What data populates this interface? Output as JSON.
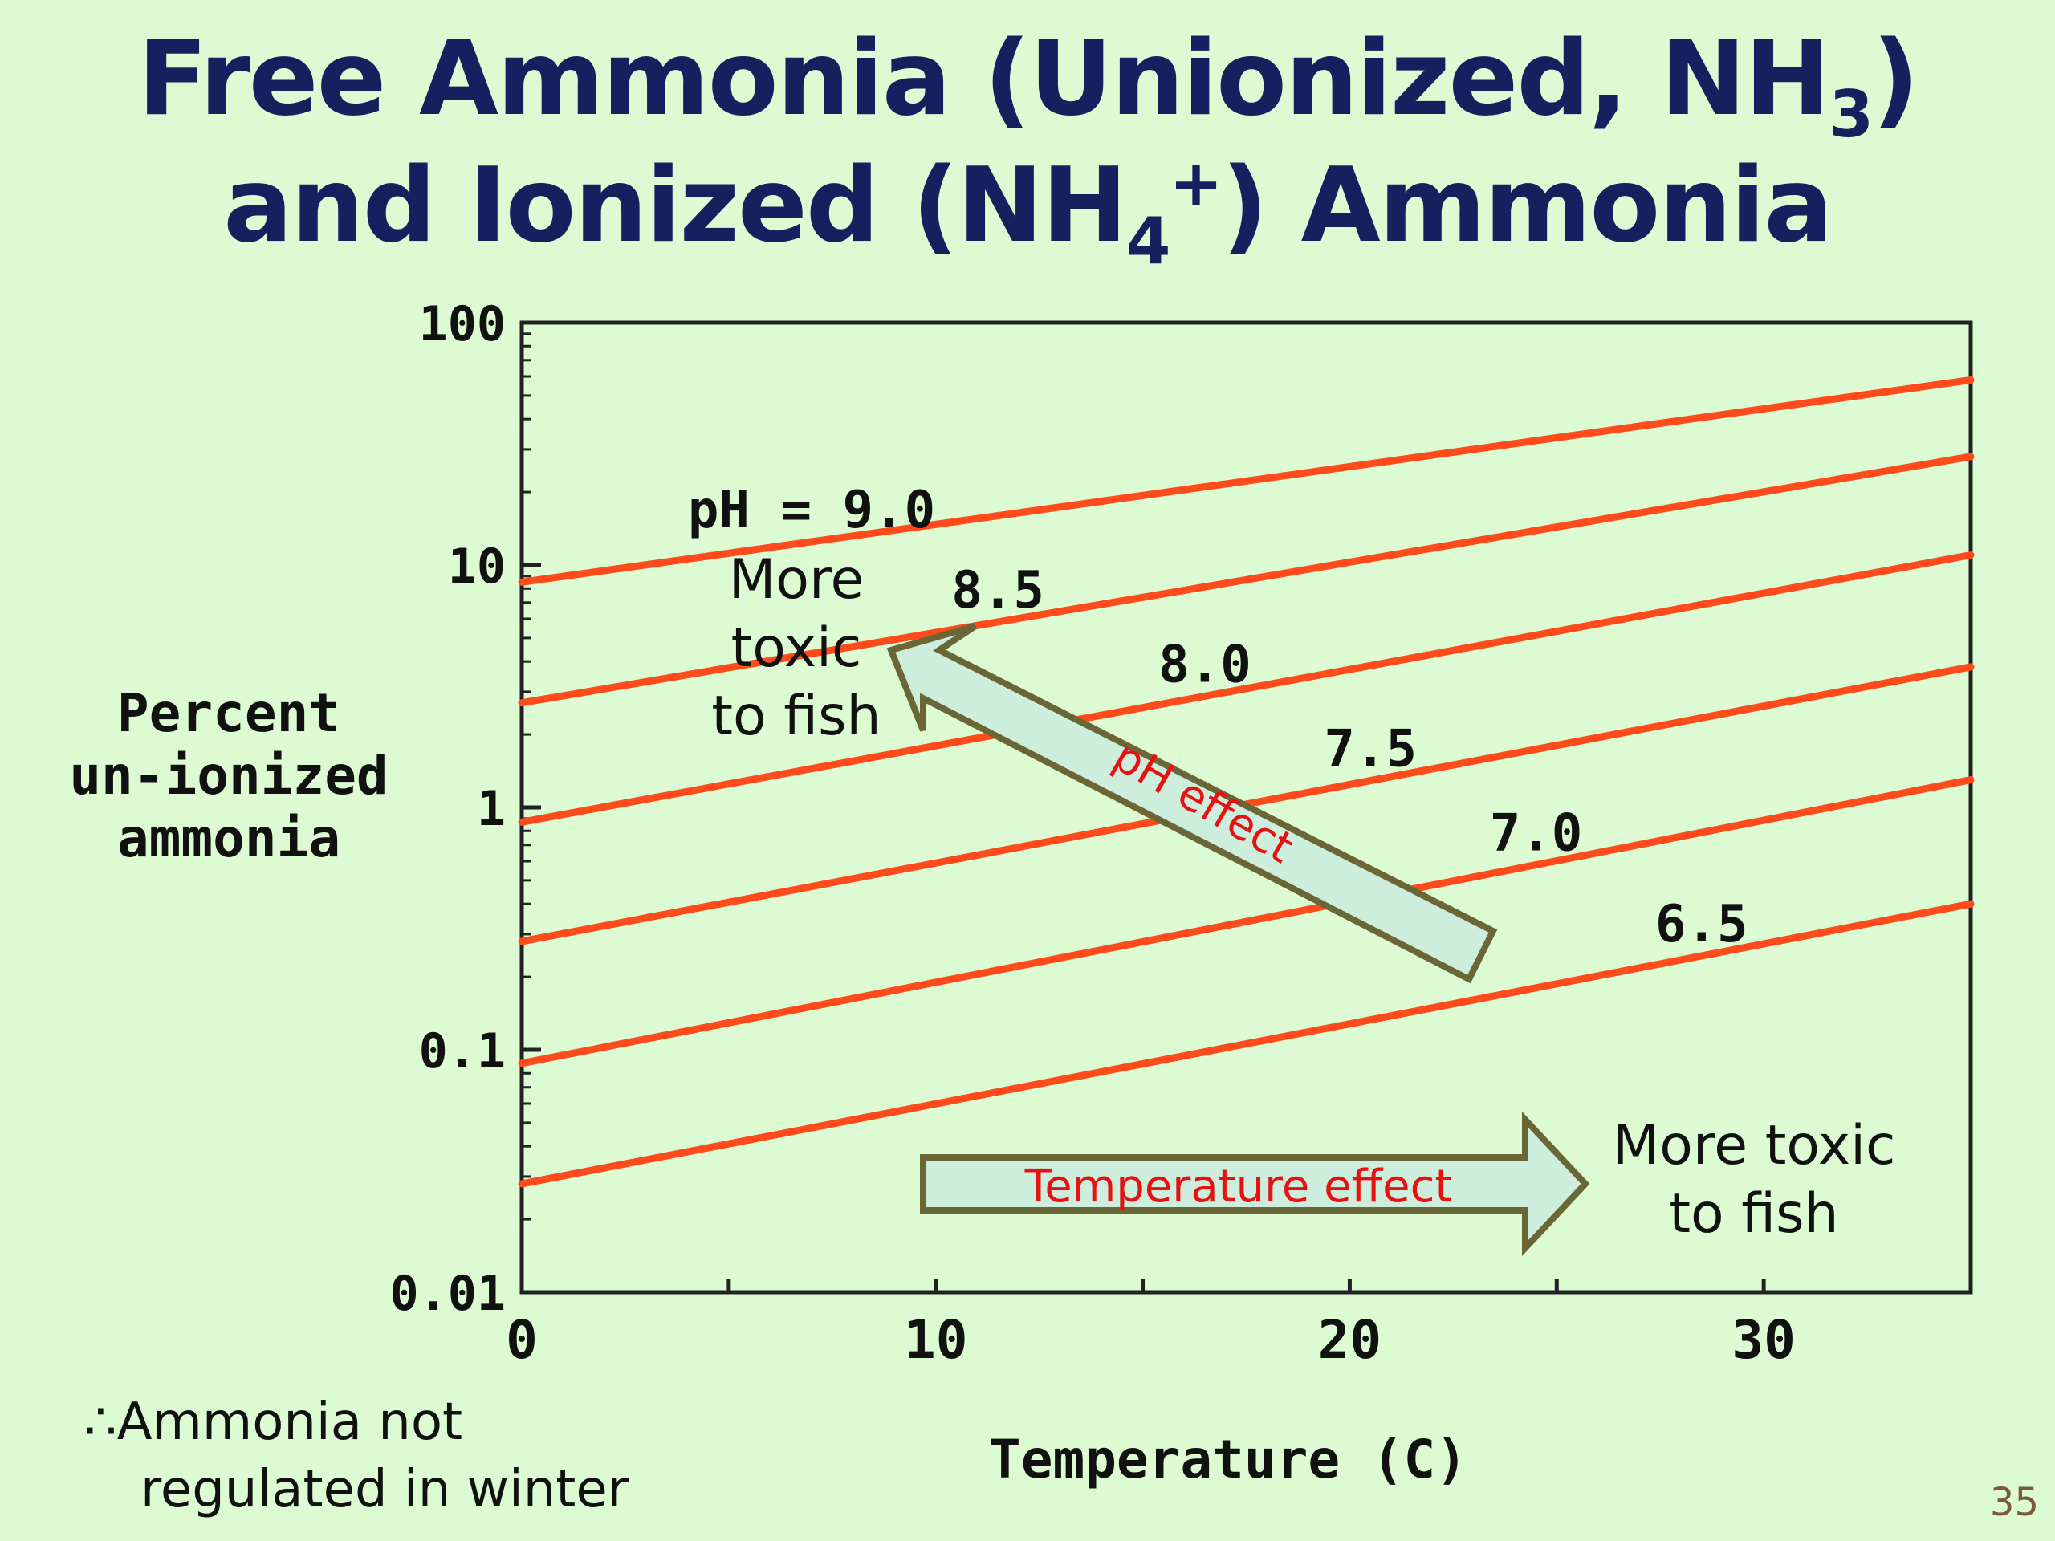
{
  "title": {
    "line1_pre": "Free Ammonia (Unionized, NH",
    "line1_sub": "3",
    "line1_post": ")",
    "line2_pre": "and Ionized (NH",
    "line2_sub": "4",
    "line2_sup": "+",
    "line2_post": ") Ammonia"
  },
  "chart_data": {
    "type": "line",
    "xlabel": "Temperature (C)",
    "ylabel_lines": [
      "Percent",
      "un-ionized",
      "ammonia"
    ],
    "xlim": [
      0,
      35
    ],
    "ylim": [
      0.01,
      100
    ],
    "yscale": "log",
    "xticks": [
      0,
      10,
      20,
      30
    ],
    "yticks": [
      100,
      10,
      1,
      0.1,
      0.01
    ],
    "ytick_labels": [
      "100",
      "10",
      "1",
      "0.1",
      "0.01"
    ],
    "grid": false,
    "x": [
      0,
      35
    ],
    "series": [
      {
        "name": "pH = 9.0",
        "values": [
          8.5,
          58
        ]
      },
      {
        "name": "8.5",
        "values": [
          2.7,
          28
        ]
      },
      {
        "name": "8.0",
        "values": [
          0.87,
          11
        ]
      },
      {
        "name": "7.5",
        "values": [
          0.28,
          3.8
        ]
      },
      {
        "name": "7.0",
        "values": [
          0.088,
          1.3
        ]
      },
      {
        "name": "6.5",
        "values": [
          0.028,
          0.4
        ]
      }
    ],
    "annotations": {
      "ph_effect": "pH effect",
      "temperature_effect": "Temperature effect",
      "more_toxic_ph_lines": [
        "More",
        "toxic",
        "to fish"
      ],
      "more_toxic_temp_lines": [
        "More toxic",
        "to fish"
      ]
    }
  },
  "colors": {
    "series_line": "#ff4a1c",
    "title": "#14215e",
    "arrow_fill": "#cdeedd",
    "arrow_stroke": "#6b6636",
    "annotation_red": "#e81010"
  },
  "note": {
    "line1": "∴Ammonia not",
    "line2": "regulated in winter"
  },
  "page_number": "35"
}
